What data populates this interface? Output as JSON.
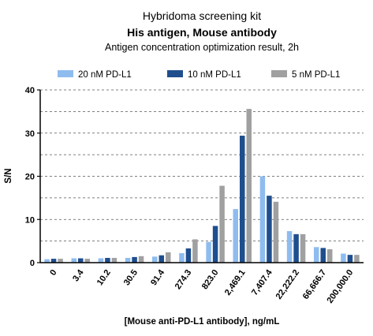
{
  "chart_data": {
    "type": "bar",
    "title": "Hybridoma screening kit",
    "subtitle": "His antigen, Mouse antibody",
    "subtitle2": "Antigen concentration optimization result, 2h",
    "xlabel": "[Mouse anti-PD-L1 antibody], ng/mL",
    "ylabel": "S/N",
    "ylim": [
      0,
      40
    ],
    "yticks": [
      "0",
      "10",
      "20",
      "30",
      "40"
    ],
    "grid": "horizontal dashed",
    "legend_position": "top",
    "categories": [
      "0",
      "3.4",
      "10.2",
      "30.5",
      "91.4",
      "274.3",
      "823.0",
      "2,469.1",
      "7,407.4",
      "22,222.2",
      "66,666.7",
      "200,000.0"
    ],
    "series": [
      {
        "name": "20 nM  PD-L1",
        "color": "#8fbcef",
        "values": [
          0.8,
          1.0,
          1.0,
          1.1,
          1.4,
          2.2,
          4.8,
          12.4,
          20.0,
          7.3,
          3.6,
          2.1
        ]
      },
      {
        "name": "10 nM  PD-L1",
        "color": "#1f4e8f",
        "values": [
          0.9,
          1.0,
          1.1,
          1.3,
          1.7,
          3.3,
          8.5,
          29.4,
          15.5,
          6.6,
          3.4,
          1.8
        ]
      },
      {
        "name": "5 nM  PD-L1",
        "color": "#a0a0a0",
        "values": [
          0.9,
          0.9,
          1.1,
          1.5,
          2.4,
          5.4,
          17.8,
          35.6,
          14.1,
          6.6,
          3.1,
          1.8
        ]
      }
    ]
  }
}
